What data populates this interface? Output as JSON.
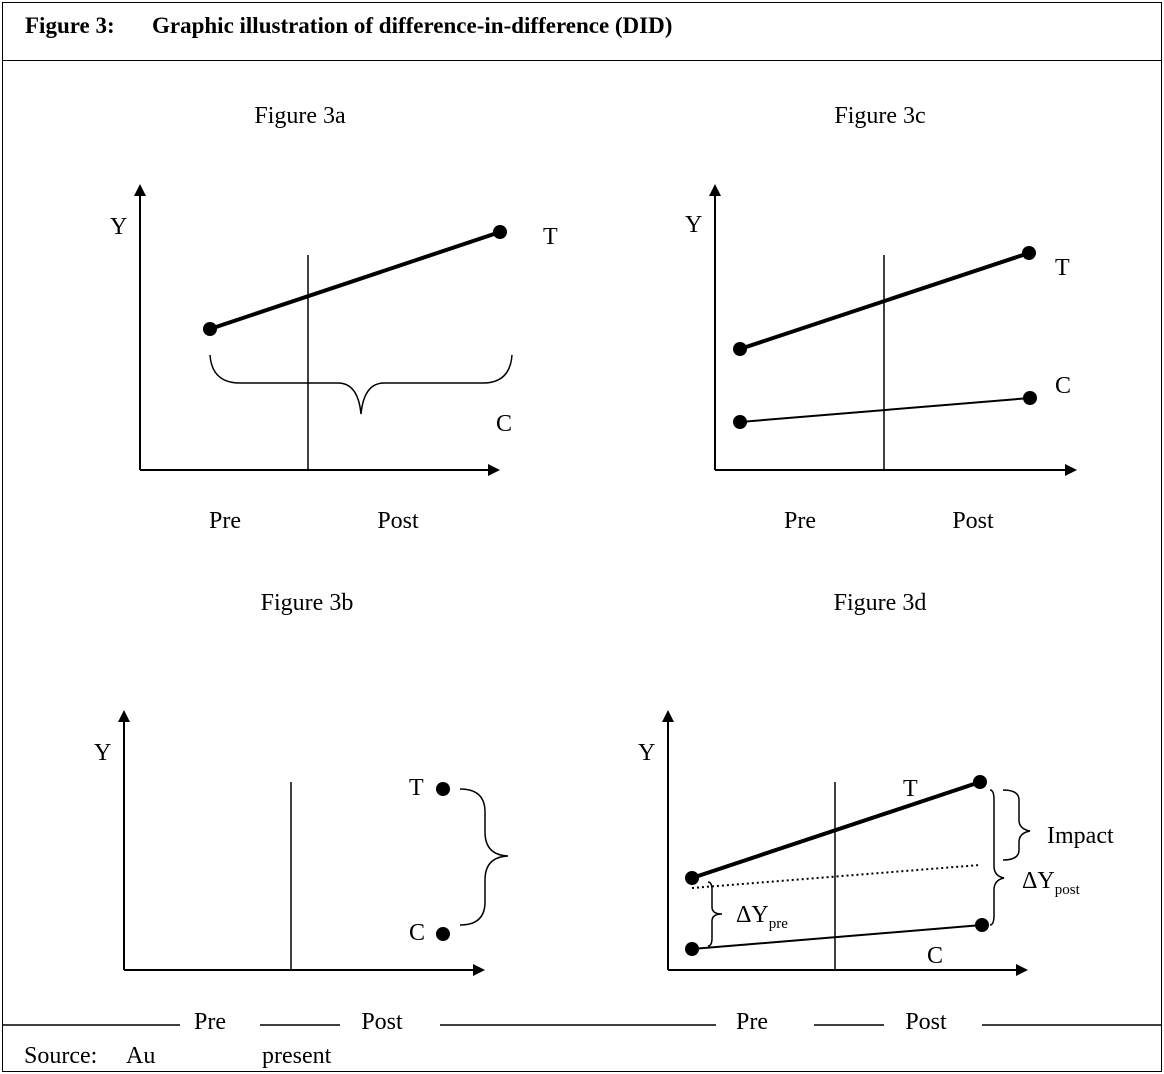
{
  "header": {
    "figure_number": "Figure 3:",
    "title": "Graphic illustration of difference-in-difference (DID)"
  },
  "panels": {
    "a": {
      "caption": "Figure 3a",
      "y_label": "Y",
      "treatment_label": "T",
      "control_label": "C",
      "x_pre": "Pre",
      "x_post": "Post"
    },
    "c": {
      "caption": "Figure 3c",
      "y_label": "Y",
      "treatment_label": "T",
      "control_label": "C",
      "x_pre": "Pre",
      "x_post": "Post"
    },
    "b": {
      "caption": "Figure 3b",
      "y_label": "Y",
      "treatment_label": "T",
      "control_label": "C",
      "x_pre": "Pre",
      "x_post": "Post"
    },
    "d": {
      "caption": "Figure 3d",
      "y_label": "Y",
      "treatment_label": "T",
      "control_label": "C",
      "x_pre": "Pre",
      "x_post": "Post",
      "impact_label": "Impact",
      "delta_y": "ΔY",
      "pre_sub": "pre",
      "post_sub": "post"
    }
  },
  "footer": {
    "source_label": "Source:",
    "source_text": "Au",
    "source_text_tail": "present"
  }
}
